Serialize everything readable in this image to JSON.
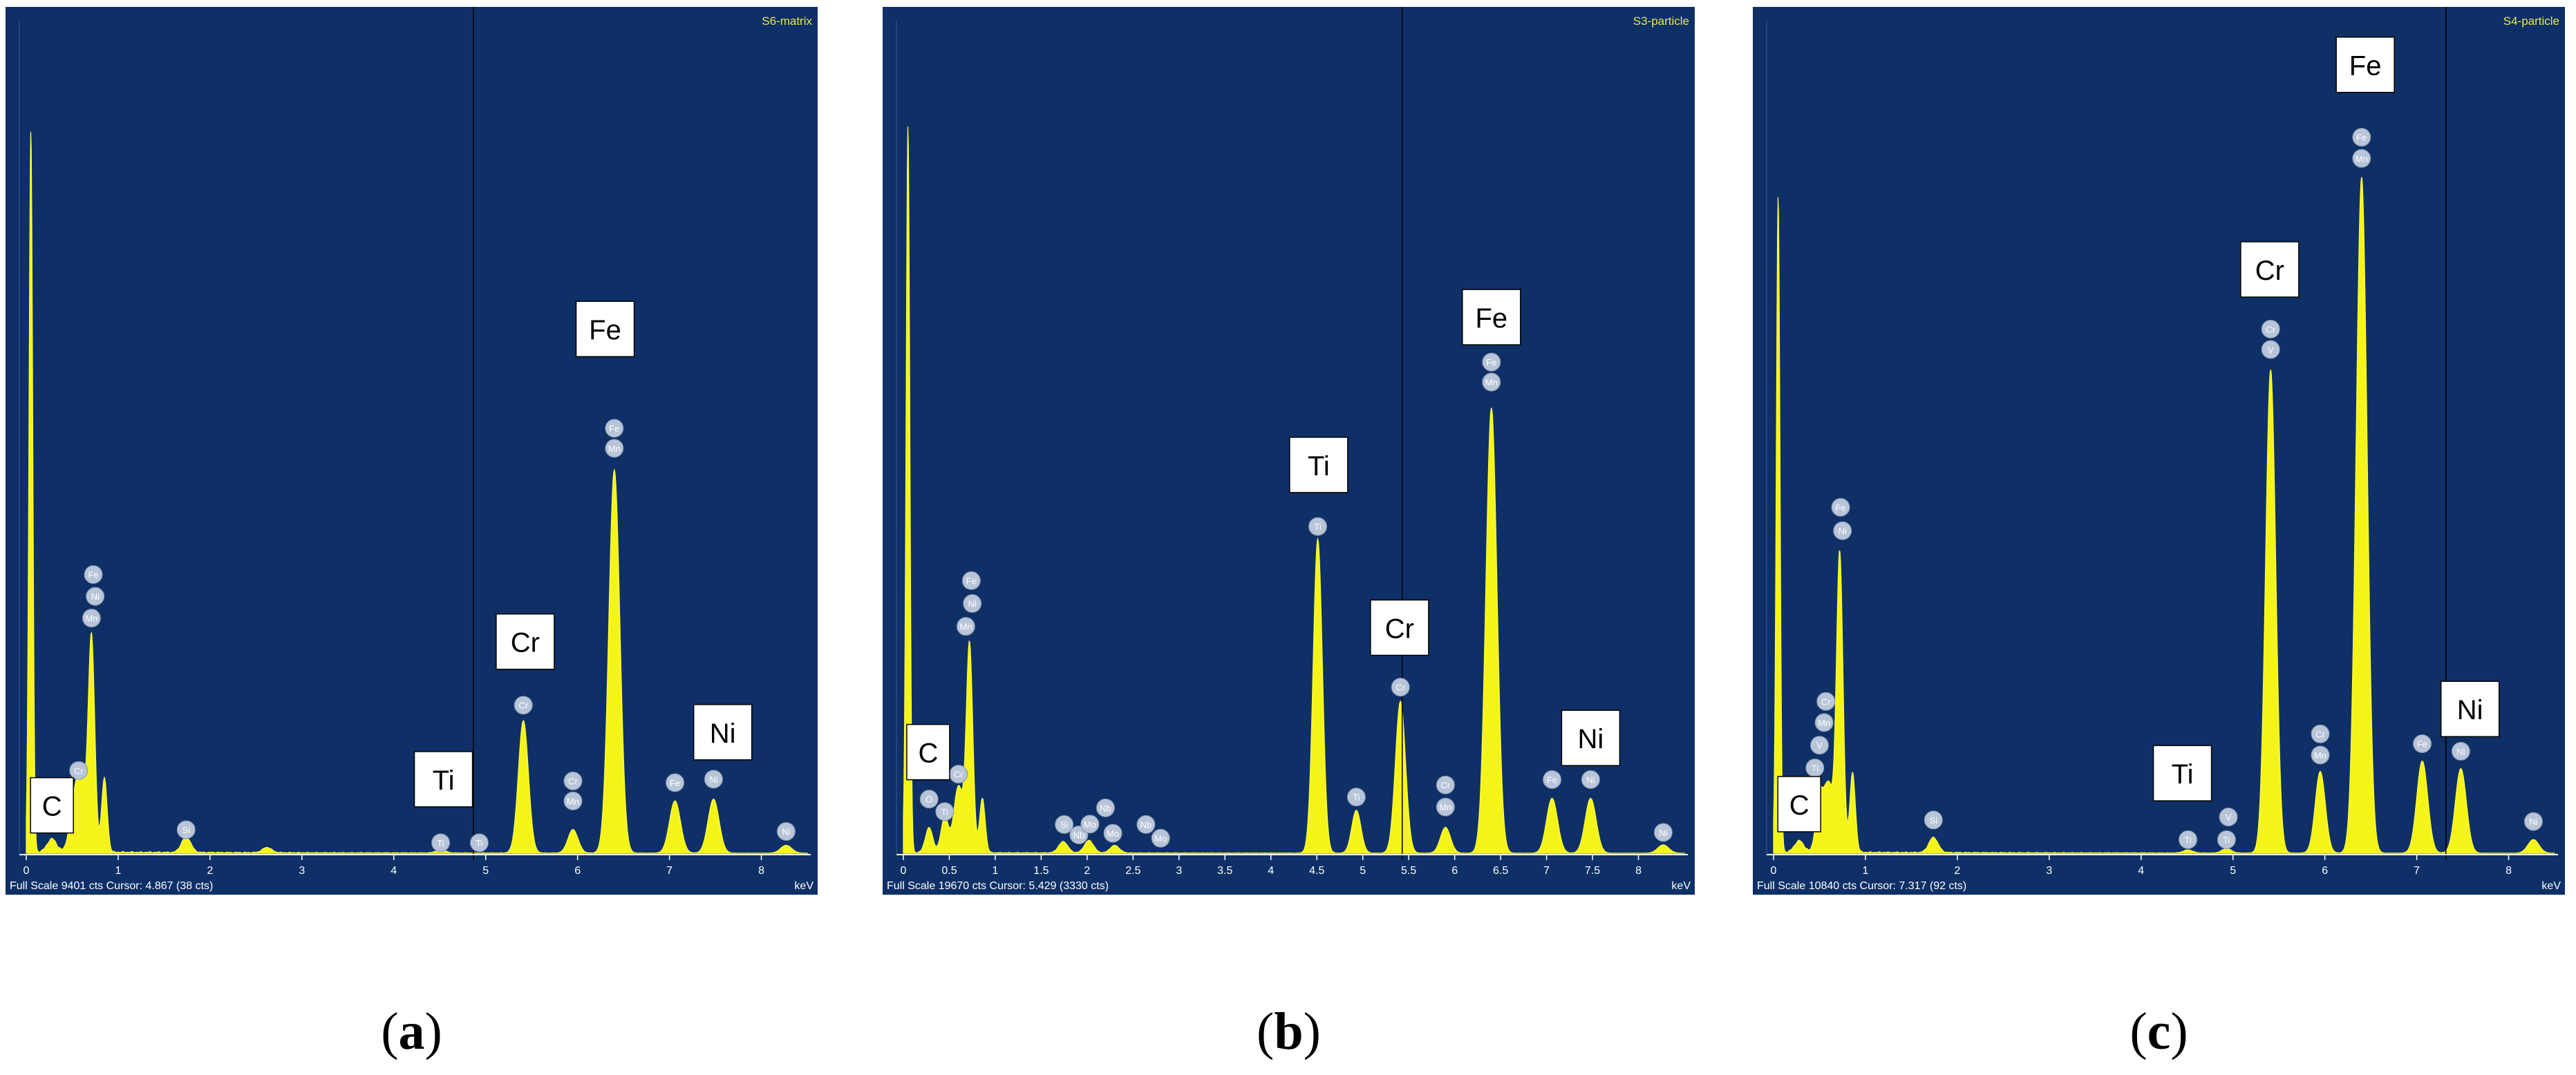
{
  "panels": [
    {
      "sample_label": "S6-matrix",
      "status_text": "Full Scale 9401 cts Cursor: 4.867  (38 cts)",
      "unit_label": "keV",
      "caption_letter": "a",
      "chart_data": {
        "type": "line",
        "xlabel": "keV",
        "x_range": [
          0,
          8.5
        ],
        "y_range": [
          0,
          9401
        ],
        "x_ticks": [
          "0",
          "1",
          "2",
          "3",
          "4",
          "5",
          "6",
          "7",
          "8"
        ],
        "cursor_x": 4.867,
        "peaks": [
          {
            "x": 0.05,
            "y": 8300,
            "w": 0.02
          },
          {
            "x": 0.28,
            "y": 150,
            "w": 0.05
          },
          {
            "x": 0.52,
            "y": 500,
            "w": 0.05
          },
          {
            "x": 0.6,
            "y": 750,
            "w": 0.05
          },
          {
            "x": 0.71,
            "y": 2450,
            "w": 0.035
          },
          {
            "x": 0.85,
            "y": 850,
            "w": 0.03
          },
          {
            "x": 1.74,
            "y": 180,
            "w": 0.05
          },
          {
            "x": 2.62,
            "y": 60,
            "w": 0.05
          },
          {
            "x": 4.51,
            "y": 40,
            "w": 0.05
          },
          {
            "x": 5.41,
            "y": 1520,
            "w": 0.055
          },
          {
            "x": 5.95,
            "y": 270,
            "w": 0.055
          },
          {
            "x": 6.4,
            "y": 4400,
            "w": 0.06
          },
          {
            "x": 7.06,
            "y": 600,
            "w": 0.06
          },
          {
            "x": 7.48,
            "y": 620,
            "w": 0.06
          },
          {
            "x": 8.27,
            "y": 90,
            "w": 0.06
          }
        ],
        "markers": [
          {
            "x": 0.57,
            "y": 950,
            "text": "Cr"
          },
          {
            "x": 0.71,
            "y": 2700,
            "text": "Mn"
          },
          {
            "x": 0.75,
            "y": 2950,
            "text": "Ni"
          },
          {
            "x": 0.73,
            "y": 3200,
            "text": "Fe"
          },
          {
            "x": 1.74,
            "y": 270,
            "text": "Si"
          },
          {
            "x": 4.51,
            "y": 120,
            "text": "Ti"
          },
          {
            "x": 4.93,
            "y": 120,
            "text": "Ti"
          },
          {
            "x": 5.41,
            "y": 1700,
            "text": "Cr"
          },
          {
            "x": 5.95,
            "y": 600,
            "text": "Mn"
          },
          {
            "x": 5.95,
            "y": 830,
            "text": "Cr"
          },
          {
            "x": 6.4,
            "y": 4650,
            "text": "Mn"
          },
          {
            "x": 6.4,
            "y": 4880,
            "text": "Fe"
          },
          {
            "x": 7.06,
            "y": 810,
            "text": "Fe"
          },
          {
            "x": 7.48,
            "y": 850,
            "text": "Ni"
          },
          {
            "x": 8.27,
            "y": 250,
            "text": "Ni"
          }
        ],
        "labels": [
          {
            "x": 0.28,
            "y": 550,
            "text": "C"
          },
          {
            "x": 4.54,
            "y": 850,
            "text": "Ti"
          },
          {
            "x": 5.43,
            "y": 2430,
            "text": "Cr"
          },
          {
            "x": 6.3,
            "y": 6020,
            "text": "Fe"
          },
          {
            "x": 7.58,
            "y": 1390,
            "text": "Ni"
          }
        ]
      }
    },
    {
      "sample_label": "S3-particle",
      "status_text": "Full Scale 19670 cts Cursor: 5.429  (3330 cts)",
      "unit_label": "keV",
      "caption_letter": "b",
      "chart_data": {
        "type": "line",
        "xlabel": "keV",
        "x_range": [
          0,
          8.5
        ],
        "y_range": [
          0,
          19670
        ],
        "x_ticks": [
          "0",
          "0.5",
          "1",
          "1.5",
          "2",
          "2.5",
          "3",
          "3.5",
          "4",
          "4.5",
          "5",
          "5.5",
          "6",
          "6.5",
          "7",
          "7.5",
          "8"
        ],
        "cursor_x": 5.429,
        "peaks": [
          {
            "x": 0.05,
            "y": 17500,
            "w": 0.02
          },
          {
            "x": 0.28,
            "y": 600,
            "w": 0.04
          },
          {
            "x": 0.45,
            "y": 850,
            "w": 0.04
          },
          {
            "x": 0.6,
            "y": 1600,
            "w": 0.05
          },
          {
            "x": 0.72,
            "y": 5000,
            "w": 0.035
          },
          {
            "x": 0.86,
            "y": 1300,
            "w": 0.03
          },
          {
            "x": 1.74,
            "y": 270,
            "w": 0.05
          },
          {
            "x": 2.02,
            "y": 300,
            "w": 0.05
          },
          {
            "x": 2.3,
            "y": 180,
            "w": 0.05
          },
          {
            "x": 4.51,
            "y": 7550,
            "w": 0.05
          },
          {
            "x": 4.93,
            "y": 1030,
            "w": 0.05
          },
          {
            "x": 5.41,
            "y": 3650,
            "w": 0.055
          },
          {
            "x": 5.9,
            "y": 620,
            "w": 0.055
          },
          {
            "x": 6.4,
            "y": 10700,
            "w": 0.06
          },
          {
            "x": 7.06,
            "y": 1320,
            "w": 0.06
          },
          {
            "x": 7.48,
            "y": 1320,
            "w": 0.06
          },
          {
            "x": 8.27,
            "y": 200,
            "w": 0.06
          }
        ],
        "markers": [
          {
            "x": 0.28,
            "y": 1300,
            "text": "O"
          },
          {
            "x": 0.45,
            "y": 1000,
            "text": "Ti"
          },
          {
            "x": 0.6,
            "y": 1900,
            "text": "Cr"
          },
          {
            "x": 0.68,
            "y": 5450,
            "text": "Mn"
          },
          {
            "x": 0.75,
            "y": 6000,
            "text": "Ni"
          },
          {
            "x": 0.74,
            "y": 6550,
            "text": "Fe"
          },
          {
            "x": 1.75,
            "y": 690,
            "text": "Si"
          },
          {
            "x": 1.91,
            "y": 440,
            "text": "Nb"
          },
          {
            "x": 2.03,
            "y": 700,
            "text": "Mo"
          },
          {
            "x": 2.2,
            "y": 1090,
            "text": "Nb"
          },
          {
            "x": 2.28,
            "y": 480,
            "text": "Mo"
          },
          {
            "x": 2.64,
            "y": 690,
            "text": "Nb"
          },
          {
            "x": 2.8,
            "y": 360,
            "text": "Mo"
          },
          {
            "x": 4.51,
            "y": 7850,
            "text": "Ti"
          },
          {
            "x": 4.93,
            "y": 1350,
            "text": "Ti"
          },
          {
            "x": 5.41,
            "y": 3990,
            "text": "Cr"
          },
          {
            "x": 5.9,
            "y": 1110,
            "text": "Mn"
          },
          {
            "x": 5.9,
            "y": 1640,
            "text": "Cr"
          },
          {
            "x": 6.4,
            "y": 11320,
            "text": "Mn"
          },
          {
            "x": 6.4,
            "y": 11800,
            "text": "Fe"
          },
          {
            "x": 7.06,
            "y": 1770,
            "text": "Fe"
          },
          {
            "x": 7.48,
            "y": 1770,
            "text": "Ni"
          },
          {
            "x": 8.27,
            "y": 500,
            "text": "Ni"
          }
        ],
        "labels": [
          {
            "x": 0.27,
            "y": 2430,
            "text": "C"
          },
          {
            "x": 4.52,
            "y": 9330,
            "text": "Ti"
          },
          {
            "x": 5.4,
            "y": 5420,
            "text": "Cr"
          },
          {
            "x": 6.4,
            "y": 12880,
            "text": "Fe"
          },
          {
            "x": 7.48,
            "y": 2770,
            "text": "Ni"
          }
        ]
      }
    },
    {
      "sample_label": "S4-particle",
      "status_text": "Full Scale 10840 cts Cursor: 7.317  (92 cts)",
      "unit_label": "keV",
      "caption_letter": "c",
      "chart_data": {
        "type": "line",
        "xlabel": "keV",
        "x_range": [
          0,
          8.5
        ],
        "y_range": [
          0,
          10840
        ],
        "x_ticks": [
          "0",
          "1",
          "2",
          "3",
          "4",
          "5",
          "6",
          "7",
          "8"
        ],
        "cursor_x": 7.317,
        "peaks": [
          {
            "x": 0.05,
            "y": 8700,
            "w": 0.02
          },
          {
            "x": 0.28,
            "y": 150,
            "w": 0.05
          },
          {
            "x": 0.5,
            "y": 700,
            "w": 0.04
          },
          {
            "x": 0.6,
            "y": 900,
            "w": 0.05
          },
          {
            "x": 0.72,
            "y": 3950,
            "w": 0.035
          },
          {
            "x": 0.86,
            "y": 1050,
            "w": 0.03
          },
          {
            "x": 1.74,
            "y": 200,
            "w": 0.05
          },
          {
            "x": 4.51,
            "y": 40,
            "w": 0.05
          },
          {
            "x": 4.93,
            "y": 60,
            "w": 0.05
          },
          {
            "x": 5.41,
            "y": 6400,
            "w": 0.055
          },
          {
            "x": 5.95,
            "y": 1080,
            "w": 0.055
          },
          {
            "x": 6.4,
            "y": 8950,
            "w": 0.06
          },
          {
            "x": 7.06,
            "y": 1220,
            "w": 0.06
          },
          {
            "x": 7.48,
            "y": 1120,
            "w": 0.06
          },
          {
            "x": 8.27,
            "y": 180,
            "w": 0.06
          }
        ],
        "markers": [
          {
            "x": 0.45,
            "y": 1130,
            "text": "Ti"
          },
          {
            "x": 0.5,
            "y": 1430,
            "text": "V"
          },
          {
            "x": 0.55,
            "y": 1730,
            "text": "Mn"
          },
          {
            "x": 0.57,
            "y": 2010,
            "text": "Cr"
          },
          {
            "x": 0.75,
            "y": 4270,
            "text": "Ni"
          },
          {
            "x": 0.73,
            "y": 4580,
            "text": "Fe"
          },
          {
            "x": 1.74,
            "y": 440,
            "text": "Si"
          },
          {
            "x": 4.51,
            "y": 180,
            "text": "Ti"
          },
          {
            "x": 4.93,
            "y": 180,
            "text": "Ti"
          },
          {
            "x": 4.95,
            "y": 480,
            "text": "V"
          },
          {
            "x": 5.41,
            "y": 6670,
            "text": "V"
          },
          {
            "x": 5.41,
            "y": 6940,
            "text": "Cr"
          },
          {
            "x": 5.95,
            "y": 1300,
            "text": "Mn"
          },
          {
            "x": 5.95,
            "y": 1580,
            "text": "Cr"
          },
          {
            "x": 6.4,
            "y": 9200,
            "text": "Mn"
          },
          {
            "x": 6.4,
            "y": 9480,
            "text": "Fe"
          },
          {
            "x": 7.06,
            "y": 1450,
            "text": "Fe"
          },
          {
            "x": 7.48,
            "y": 1350,
            "text": "Ni"
          },
          {
            "x": 8.27,
            "y": 420,
            "text": "Ni"
          }
        ],
        "labels": [
          {
            "x": 0.28,
            "y": 650,
            "text": "C"
          },
          {
            "x": 4.45,
            "y": 1060,
            "text": "Ti"
          },
          {
            "x": 5.4,
            "y": 7730,
            "text": "Cr"
          },
          {
            "x": 6.44,
            "y": 10440,
            "text": "Fe"
          },
          {
            "x": 7.58,
            "y": 1910,
            "text": "Ni"
          }
        ]
      }
    }
  ]
}
